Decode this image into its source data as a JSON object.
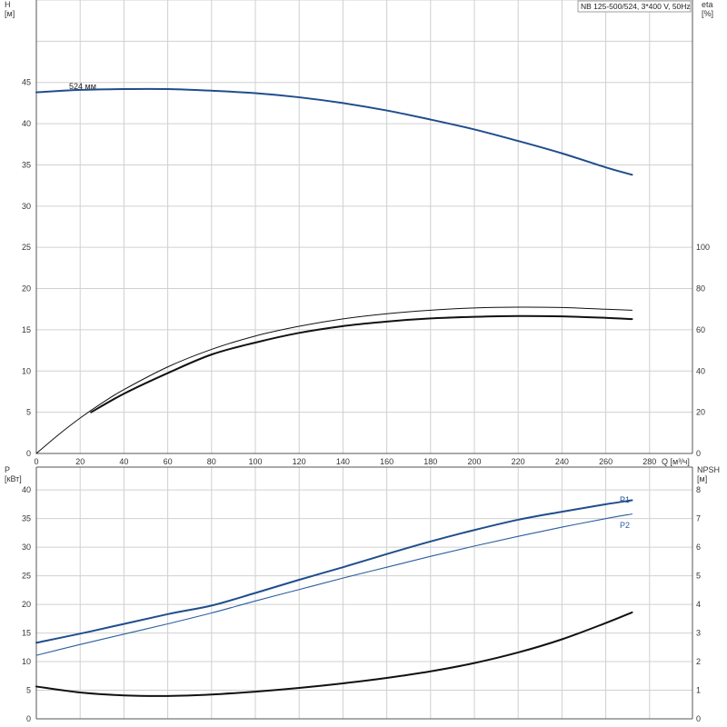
{
  "title": "NB 125-500/524, 3*400 V, 50Hz",
  "colors": {
    "head": "#1f4e8c",
    "eta": "#111111",
    "p1": "#1f4e8c",
    "p2": "#2c5e9e",
    "npsh": "#111111",
    "grid": "#d0d0d0"
  },
  "chart_data": [
    {
      "type": "line",
      "panel": "top",
      "xlabel": "Q [м³/ч]",
      "ylabel_left": "H\n[м]",
      "ylabel_right": "eta\n[%]",
      "x_ticks": [
        "0",
        "20",
        "40",
        "60",
        "80",
        "100",
        "120",
        "140",
        "160",
        "180",
        "200",
        "220",
        "240",
        "260",
        "280"
      ],
      "y_left_ticks": [
        "0",
        "5",
        "10",
        "15",
        "20",
        "25",
        "30",
        "35",
        "40",
        "45"
      ],
      "y_right_ticks": [
        "0",
        "20",
        "40",
        "60",
        "80",
        "100"
      ],
      "xlim": [
        0,
        300
      ],
      "ylim_left": [
        0,
        55
      ],
      "ylim_right": [
        0,
        220
      ],
      "grid": true,
      "series": [
        {
          "key": "head",
          "name": "524 мм",
          "axis": "left",
          "x": [
            0,
            20,
            40,
            60,
            80,
            100,
            120,
            140,
            160,
            180,
            200,
            220,
            240,
            260,
            272
          ],
          "y": [
            43.8,
            44.1,
            44.2,
            44.2,
            44.0,
            43.7,
            43.2,
            42.5,
            41.6,
            40.5,
            39.3,
            37.9,
            36.4,
            34.7,
            33.8
          ]
        },
        {
          "key": "eta_thin",
          "axis": "right",
          "x": [
            0,
            10,
            20,
            30,
            40,
            60,
            80,
            100,
            120,
            140,
            160,
            180,
            200,
            220,
            240,
            260,
            272
          ],
          "y": [
            0,
            9.0,
            17.2,
            24.5,
            31.0,
            42.0,
            50.5,
            57.0,
            61.7,
            65.3,
            67.8,
            69.5,
            70.6,
            71.0,
            70.8,
            70.0,
            69.5
          ]
        },
        {
          "key": "eta_thick",
          "axis": "right",
          "x": [
            25,
            40,
            60,
            80,
            100,
            120,
            140,
            160,
            180,
            200,
            220,
            240,
            260,
            272
          ],
          "y": [
            20.0,
            29.0,
            39.0,
            48.0,
            53.8,
            58.5,
            61.8,
            64.0,
            65.5,
            66.3,
            66.7,
            66.5,
            65.8,
            65.2
          ]
        }
      ]
    },
    {
      "type": "line",
      "panel": "bottom",
      "ylabel_left": "P\n[кВт]",
      "ylabel_right": "NPSH\n[м]",
      "y_left_ticks": [
        "0",
        "5",
        "10",
        "15",
        "20",
        "25",
        "30",
        "35",
        "40"
      ],
      "y_right_ticks": [
        "0",
        "1",
        "2",
        "3",
        "4",
        "5",
        "6",
        "7",
        "8"
      ],
      "xlim": [
        0,
        300
      ],
      "ylim_left": [
        0,
        44
      ],
      "ylim_right": [
        0,
        8.8
      ],
      "grid": true,
      "series": [
        {
          "key": "p1",
          "name": "P1",
          "axis": "left",
          "x": [
            0,
            25,
            60,
            80,
            100,
            120,
            140,
            160,
            180,
            200,
            220,
            240,
            260,
            272
          ],
          "y": [
            13.3,
            15.3,
            18.3,
            19.8,
            22.0,
            24.3,
            26.5,
            28.8,
            31.0,
            33.0,
            34.8,
            36.2,
            37.5,
            38.2
          ]
        },
        {
          "key": "p2",
          "name": "P2",
          "axis": "left",
          "x": [
            0,
            20,
            40,
            60,
            80,
            100,
            120,
            140,
            160,
            180,
            200,
            220,
            240,
            260,
            272
          ],
          "y": [
            11.1,
            13.0,
            14.8,
            16.6,
            18.5,
            20.6,
            22.6,
            24.6,
            26.5,
            28.4,
            30.2,
            31.9,
            33.5,
            35.0,
            35.8
          ]
        },
        {
          "key": "npsh",
          "axis": "right",
          "x": [
            0,
            20,
            40,
            60,
            80,
            100,
            120,
            140,
            160,
            180,
            200,
            220,
            240,
            260,
            272
          ],
          "y": [
            1.13,
            0.92,
            0.82,
            0.8,
            0.85,
            0.95,
            1.08,
            1.24,
            1.43,
            1.66,
            1.95,
            2.32,
            2.78,
            3.35,
            3.72
          ]
        }
      ]
    }
  ]
}
